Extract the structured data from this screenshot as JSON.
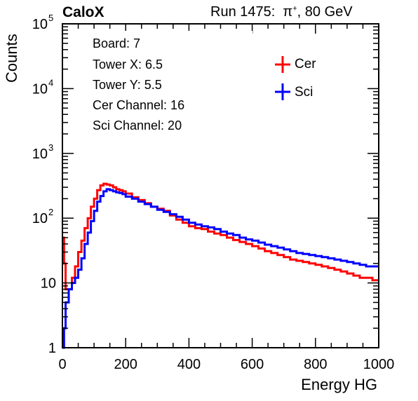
{
  "header": {
    "left_label": "CaloX",
    "run_text": "Run 1475:",
    "particle_base": "π",
    "particle_charge": "+",
    "energy_text": ", 80 GeV"
  },
  "info_box": [
    "Board: 7",
    "Tower X: 6.5",
    "Tower Y: 5.5",
    "Cer Channel: 16",
    "Sci Channel: 20"
  ],
  "chart_data": {
    "type": "line",
    "xlabel": "Energy HG",
    "ylabel": "Counts",
    "xlim": [
      0,
      1000
    ],
    "ylim": [
      1,
      100000
    ],
    "y_scale": "log",
    "x_ticks": [
      0,
      200,
      400,
      600,
      800,
      1000
    ],
    "y_ticks": [
      1,
      10,
      100,
      1000,
      10000,
      100000
    ],
    "y_tick_labels": {
      "1": {
        "base": "1",
        "exp": ""
      },
      "10": {
        "base": "10",
        "exp": ""
      },
      "100": {
        "base": "10",
        "exp": "2"
      },
      "1000": {
        "base": "10",
        "exp": "3"
      },
      "10000": {
        "base": "10",
        "exp": "4"
      },
      "100000": {
        "base": "10",
        "exp": "5"
      }
    },
    "grid": false,
    "legend_position": "top-right",
    "series": [
      {
        "name": "Cer",
        "color": "#ff0000",
        "x": [
          0,
          5,
          10,
          20,
          30,
          40,
          50,
          60,
          70,
          80,
          90,
          100,
          110,
          120,
          130,
          140,
          150,
          160,
          170,
          180,
          190,
          200,
          220,
          240,
          260,
          280,
          300,
          320,
          340,
          360,
          380,
          400,
          420,
          440,
          460,
          480,
          500,
          520,
          540,
          560,
          580,
          600,
          620,
          640,
          660,
          680,
          700,
          720,
          740,
          760,
          780,
          800,
          820,
          840,
          860,
          880,
          900,
          920,
          940,
          960,
          980,
          1000
        ],
        "y": [
          50,
          20,
          8,
          8,
          12,
          18,
          30,
          45,
          70,
          100,
          150,
          200,
          270,
          320,
          340,
          330,
          320,
          300,
          280,
          270,
          260,
          240,
          210,
          190,
          170,
          150,
          140,
          130,
          110,
          95,
          85,
          75,
          70,
          68,
          62,
          58,
          55,
          50,
          46,
          43,
          40,
          37,
          34,
          31,
          29,
          27,
          25,
          23,
          22,
          21,
          20,
          19,
          18,
          17,
          16,
          15,
          14,
          13,
          12,
          12,
          11,
          11
        ]
      },
      {
        "name": "Sci",
        "color": "#0000ff",
        "x": [
          0,
          5,
          10,
          20,
          30,
          40,
          50,
          60,
          70,
          80,
          90,
          100,
          110,
          120,
          130,
          140,
          150,
          160,
          170,
          180,
          190,
          200,
          220,
          240,
          260,
          280,
          300,
          320,
          340,
          360,
          380,
          400,
          420,
          440,
          460,
          480,
          500,
          520,
          540,
          560,
          580,
          600,
          620,
          640,
          660,
          680,
          700,
          720,
          740,
          760,
          780,
          800,
          820,
          840,
          860,
          880,
          900,
          920,
          940,
          960,
          980,
          1000
        ],
        "y": [
          1,
          2,
          5,
          8,
          10,
          12,
          16,
          24,
          40,
          60,
          90,
          130,
          180,
          220,
          260,
          280,
          270,
          260,
          250,
          245,
          235,
          215,
          200,
          180,
          165,
          150,
          135,
          125,
          115,
          105,
          95,
          85,
          80,
          75,
          72,
          68,
          62,
          58,
          55,
          50,
          47,
          45,
          42,
          39,
          37,
          35,
          33,
          31,
          29,
          28,
          27,
          26,
          25,
          24,
          23,
          22,
          21,
          20,
          19,
          18,
          18,
          18
        ]
      }
    ]
  }
}
